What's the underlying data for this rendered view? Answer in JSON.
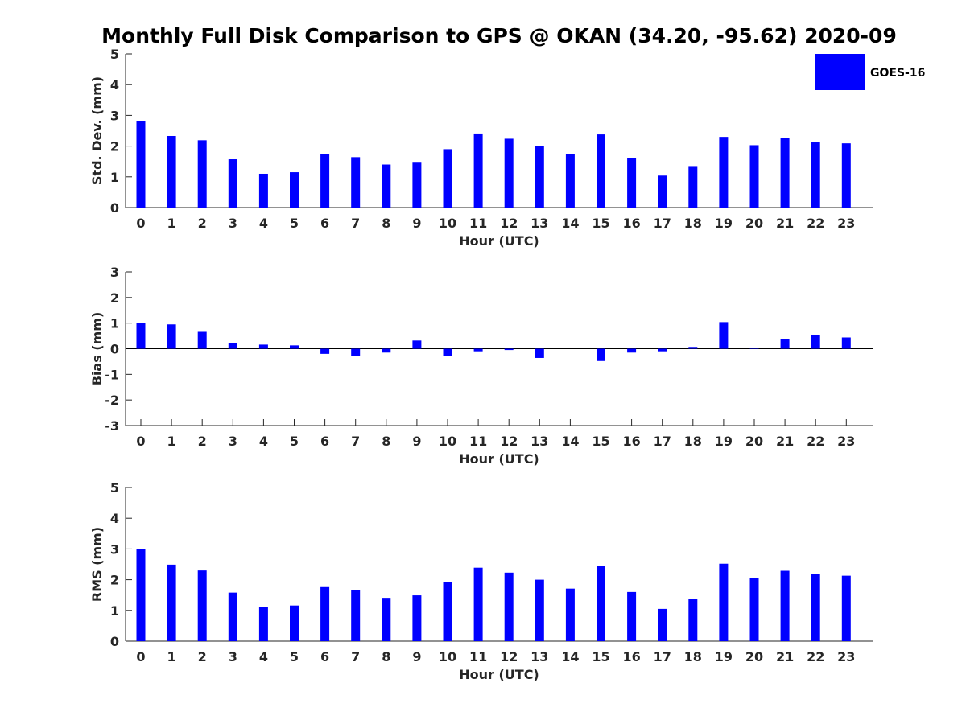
{
  "figure_title": "Monthly Full Disk Comparison to GPS @ OKAN (34.20, -95.62) 2020-09",
  "legend": {
    "label": "GOES-16",
    "color": "#0000ff"
  },
  "chart_data": [
    {
      "type": "bar",
      "id": "std",
      "ylabel": "Std. Dev. (mm)",
      "xlabel": "Hour (UTC)",
      "ylim": [
        0,
        5
      ],
      "yticks": [
        0,
        1,
        2,
        3,
        4,
        5
      ],
      "categories": [
        "0",
        "1",
        "2",
        "3",
        "4",
        "5",
        "6",
        "7",
        "8",
        "9",
        "10",
        "11",
        "12",
        "13",
        "14",
        "15",
        "16",
        "17",
        "18",
        "19",
        "20",
        "21",
        "22",
        "23"
      ],
      "series": [
        {
          "name": "GOES-16",
          "color": "#0000ff",
          "values": [
            2.82,
            2.33,
            2.19,
            1.57,
            1.1,
            1.15,
            1.74,
            1.64,
            1.4,
            1.46,
            1.9,
            2.41,
            2.24,
            1.99,
            1.73,
            2.38,
            1.62,
            1.04,
            1.35,
            2.3,
            2.03,
            2.27,
            2.12,
            2.09
          ]
        }
      ]
    },
    {
      "type": "bar",
      "id": "bias",
      "ylabel": "Bias (mm)",
      "xlabel": "Hour (UTC)",
      "ylim": [
        -3,
        3
      ],
      "yticks": [
        -3,
        -2,
        -1,
        0,
        1,
        2,
        3
      ],
      "zero_line": true,
      "categories": [
        "0",
        "1",
        "2",
        "3",
        "4",
        "5",
        "6",
        "7",
        "8",
        "9",
        "10",
        "11",
        "12",
        "13",
        "14",
        "15",
        "16",
        "17",
        "18",
        "19",
        "20",
        "21",
        "22",
        "23"
      ],
      "series": [
        {
          "name": "GOES-16",
          "color": "#0000ff",
          "values": [
            1.01,
            0.95,
            0.66,
            0.23,
            0.16,
            0.13,
            -0.2,
            -0.27,
            -0.15,
            0.32,
            -0.29,
            -0.1,
            -0.05,
            -0.36,
            0.0,
            -0.48,
            -0.15,
            -0.1,
            0.07,
            1.04,
            0.04,
            0.39,
            0.55,
            0.44
          ]
        }
      ]
    },
    {
      "type": "bar",
      "id": "rms",
      "ylabel": "RMS (mm)",
      "xlabel": "Hour (UTC)",
      "ylim": [
        0,
        5
      ],
      "yticks": [
        0,
        1,
        2,
        3,
        4,
        5
      ],
      "categories": [
        "0",
        "1",
        "2",
        "3",
        "4",
        "5",
        "6",
        "7",
        "8",
        "9",
        "10",
        "11",
        "12",
        "13",
        "14",
        "15",
        "16",
        "17",
        "18",
        "19",
        "20",
        "21",
        "22",
        "23"
      ],
      "series": [
        {
          "name": "GOES-16",
          "color": "#0000ff",
          "values": [
            2.99,
            2.49,
            2.3,
            1.58,
            1.11,
            1.16,
            1.76,
            1.65,
            1.41,
            1.49,
            1.92,
            2.39,
            2.23,
            2.0,
            1.71,
            2.44,
            1.6,
            1.05,
            1.37,
            2.52,
            2.05,
            2.29,
            2.18,
            2.13
          ]
        }
      ]
    }
  ]
}
